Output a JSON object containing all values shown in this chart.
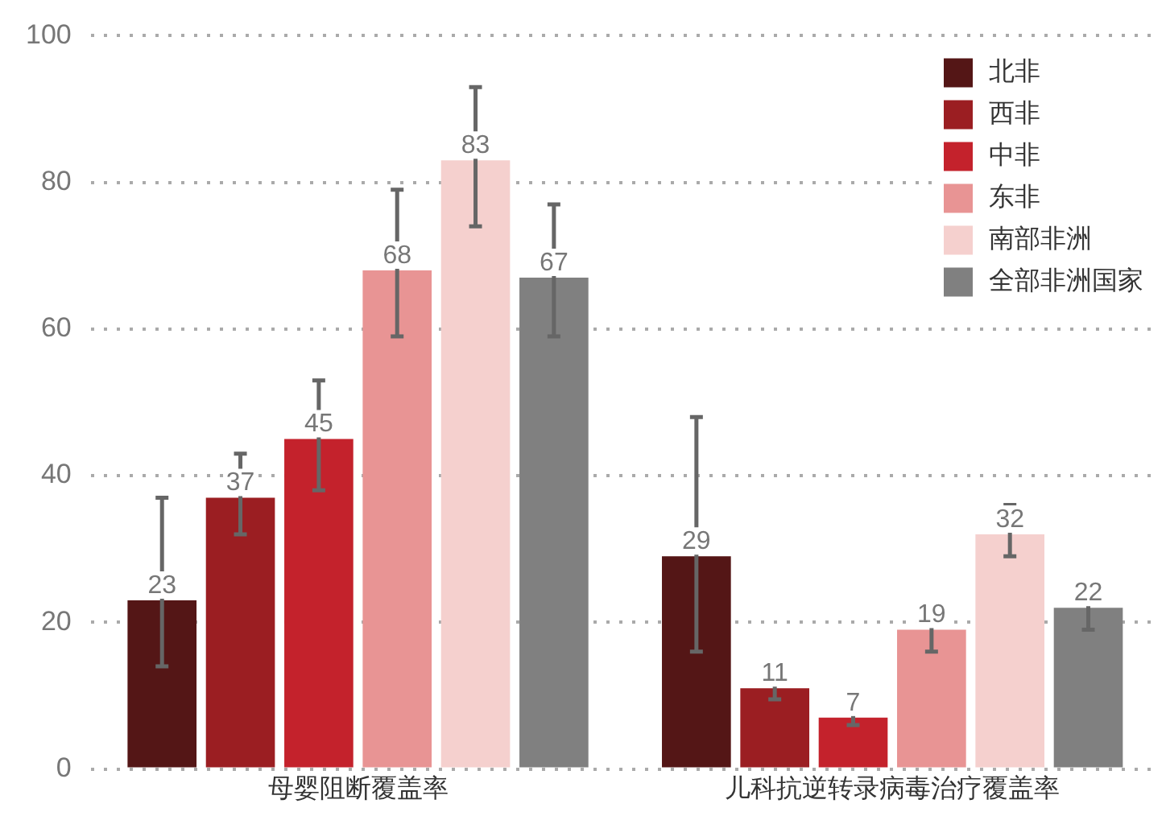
{
  "chart_data": {
    "type": "bar",
    "categories": [
      "母婴阻断覆盖率",
      "儿科抗逆转录病毒治疗覆盖率"
    ],
    "series": [
      {
        "name": "北非",
        "color": "#541616",
        "values": [
          23,
          29
        ],
        "errors": [
          [
            14,
            37
          ],
          [
            16,
            48
          ]
        ]
      },
      {
        "name": "西非",
        "color": "#9b1e22",
        "values": [
          37,
          11
        ],
        "errors": [
          [
            32,
            43
          ],
          [
            9.5,
            13.5
          ]
        ]
      },
      {
        "name": "中非",
        "color": "#c4222c",
        "values": [
          45,
          7
        ],
        "errors": [
          [
            38,
            53
          ],
          [
            6,
            8.5
          ]
        ]
      },
      {
        "name": "东非",
        "color": "#e89494",
        "values": [
          68,
          19
        ],
        "errors": [
          [
            59,
            79
          ],
          [
            16,
            22.5
          ]
        ]
      },
      {
        "name": "南部非洲",
        "color": "#f5d0ce",
        "values": [
          83,
          32
        ],
        "errors": [
          [
            74,
            93
          ],
          [
            29,
            36
          ]
        ]
      },
      {
        "name": "全部非洲国家",
        "color": "#808080",
        "values": [
          67,
          22
        ],
        "errors": [
          [
            59,
            77
          ],
          [
            19,
            25
          ]
        ]
      }
    ],
    "ylim": [
      0,
      100
    ],
    "yticks": [
      0,
      20,
      40,
      60,
      80,
      100
    ],
    "grid": "y",
    "legend": "top right",
    "data_labels": true
  }
}
